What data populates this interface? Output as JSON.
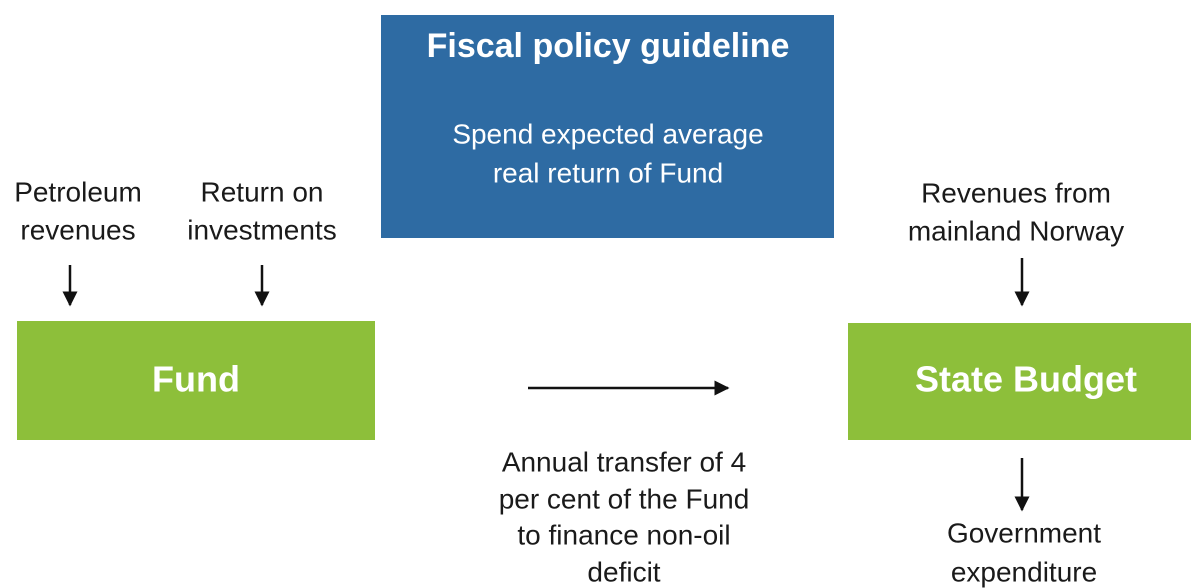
{
  "guideline": {
    "title": "Fiscal policy guideline",
    "text": [
      "Spend expected average",
      "real return of Fund"
    ]
  },
  "inputs": [
    [
      "Petroleum",
      "revenues"
    ],
    [
      "Return on",
      "investments"
    ]
  ],
  "fund": {
    "label": "Fund"
  },
  "budget": {
    "label": "State Budget",
    "input": [
      "Revenues from",
      "mainland Norway"
    ],
    "output": [
      "Government",
      "expenditure"
    ]
  },
  "transfer": [
    "Annual transfer of 4",
    "per cent of the Fund",
    "to finance non-oil",
    "deficit"
  ]
}
